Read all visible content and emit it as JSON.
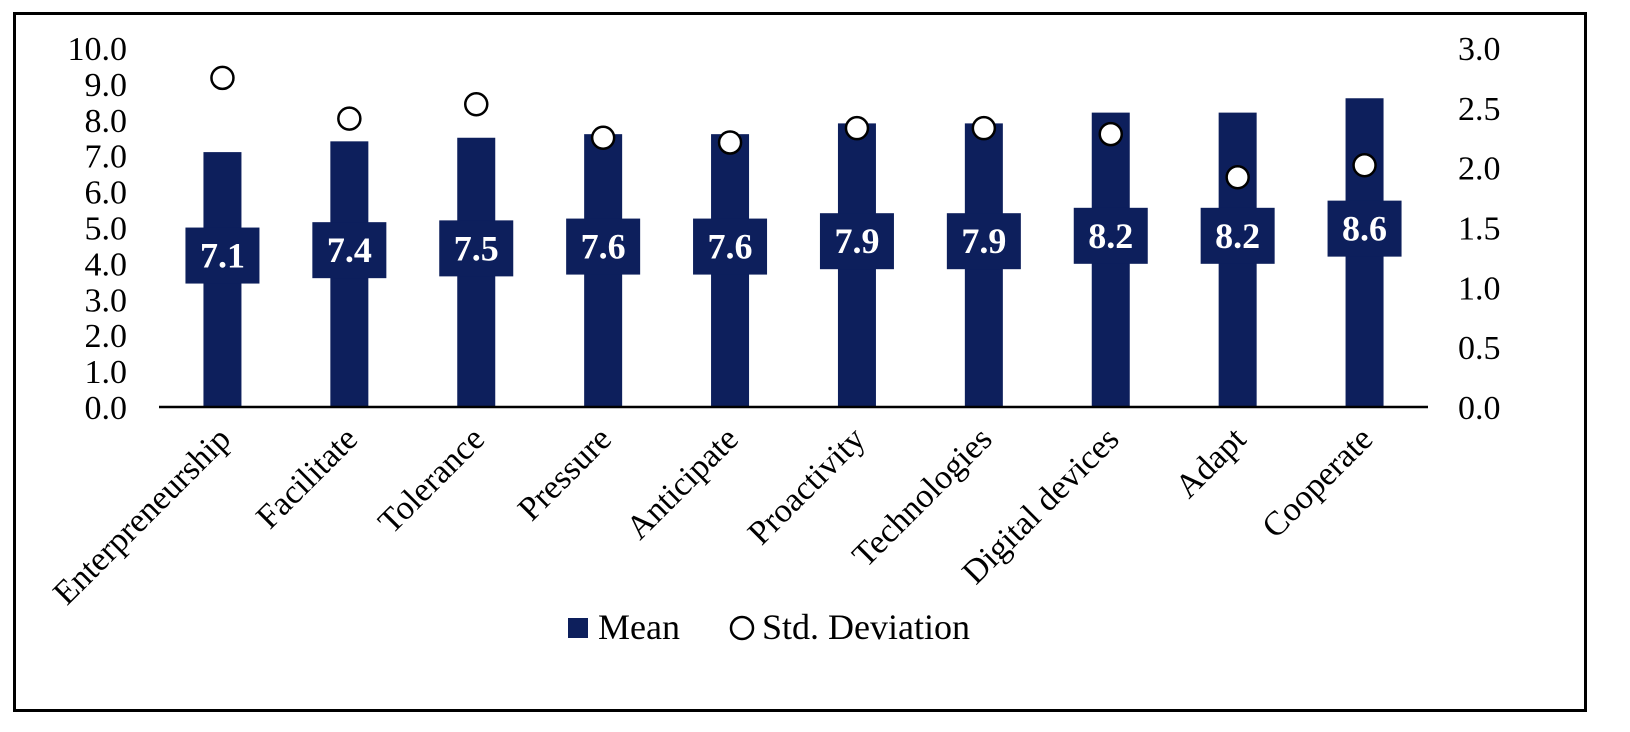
{
  "chart_data": {
    "type": "bar",
    "title": "",
    "xlabel": "",
    "ylabel": "",
    "categories": [
      "Enterpreneurship",
      "Facilitate",
      "Tolerance",
      "Pressure",
      "Anticipate",
      "Proactivity",
      "Technologies",
      "Digital devices",
      "Adapt",
      "Cooperate"
    ],
    "series": [
      {
        "name": "Mean",
        "axis": "left",
        "style": "bar",
        "values": [
          7.1,
          7.4,
          7.5,
          7.6,
          7.6,
          7.9,
          7.9,
          8.2,
          8.2,
          8.6
        ],
        "labels": [
          "7.1",
          "7.4",
          "7.5",
          "7.6",
          "7.6",
          "7.9",
          "7.9",
          "8.2",
          "8.2",
          "8.6"
        ]
      },
      {
        "name": "Std. Deviation",
        "axis": "right",
        "style": "marker",
        "values": [
          2.75,
          2.41,
          2.53,
          2.25,
          2.21,
          2.33,
          2.33,
          2.28,
          1.92,
          2.02
        ]
      }
    ],
    "ylim": [
      0,
      10
    ],
    "yticks": [
      "0.0",
      "1.0",
      "2.0",
      "3.0",
      "4.0",
      "5.0",
      "6.0",
      "7.0",
      "8.0",
      "9.0",
      "10.0"
    ],
    "y2lim": [
      0,
      3
    ],
    "y2ticks": [
      "0.0",
      "0.5",
      "1.0",
      "1.5",
      "2.0",
      "2.5",
      "3.0"
    ],
    "legend": {
      "position": "bottom",
      "items": [
        "Mean",
        "Std. Deviation"
      ]
    },
    "colors": {
      "bar": "#0d1f5c",
      "marker_fill": "#ffffff",
      "marker_stroke": "#000000"
    },
    "grid": false
  }
}
